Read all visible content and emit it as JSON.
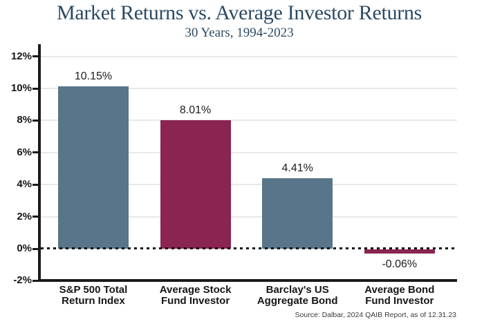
{
  "header": {
    "title": "Market Returns vs. Average Investor Returns",
    "subtitle": "30 Years, 1994-2023"
  },
  "source_note": "Source: Dalbar, 2024 QAIB Report, as of 12.31.23",
  "colors": {
    "title_text": "#2b4a63",
    "bar_blue": "#587589",
    "bar_maroon": "#8a2450",
    "axis": "#1a1a1a",
    "gridline": "#e8e8e8",
    "tick_text": "#161616",
    "value_text": "#1c1c1c",
    "background": "#ffffff"
  },
  "chart_data": {
    "type": "bar",
    "title": "Market Returns vs. Average Investor Returns",
    "subtitle": "30 Years, 1994-2023",
    "categories": [
      "S&P 500 Total Return Index",
      "Average Stock Fund Investor",
      "Barclay's US Aggregate Bond",
      "Average Bond Fund Investor"
    ],
    "category_lines": [
      [
        "S&P 500 Total",
        "Return Index"
      ],
      [
        "Average Stock",
        "Fund Investor"
      ],
      [
        "Barclay's US",
        "Aggregate Bond"
      ],
      [
        "Average Bond",
        "Fund Investor"
      ]
    ],
    "values": [
      10.15,
      8.01,
      4.41,
      -0.06
    ],
    "value_labels": [
      "10.15%",
      "8.01%",
      "4.41%",
      "-0.06%"
    ],
    "bar_colors": [
      "#587589",
      "#8a2450",
      "#587589",
      "#8a2450"
    ],
    "xlabel": "",
    "ylabel": "",
    "ylim": [
      -2,
      12
    ],
    "ytick_step": 2,
    "ytick_labels": [
      "-2%",
      "0%",
      "2%",
      "4%",
      "6%",
      "8%",
      "10%",
      "12%"
    ],
    "grid": true,
    "zero_line_style": "dotted",
    "legend": false
  }
}
